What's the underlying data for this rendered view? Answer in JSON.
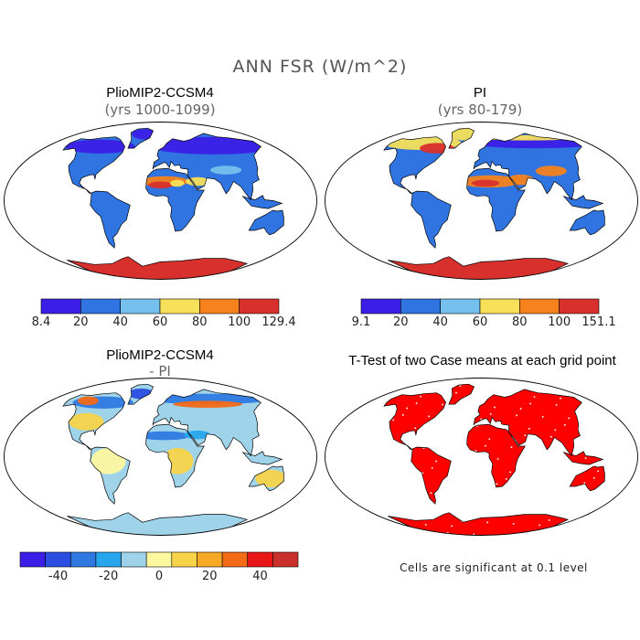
{
  "figure": {
    "title": "ANN FSR (W/m^2)"
  },
  "panels": [
    {
      "id": "pliomip",
      "title": "PlioMIP2-CCSM4",
      "subtitle": "(yrs 1000-1099)",
      "scheme": "abs_plio"
    },
    {
      "id": "pi",
      "title": "PI",
      "subtitle": "(yrs 80-179)",
      "scheme": "abs_pi"
    },
    {
      "id": "diff",
      "title": "PlioMIP2-CCSM4",
      "subtitle": "- PI",
      "scheme": "diff"
    },
    {
      "id": "ttest",
      "title": "T-Test of two Case means at each grid point",
      "subtitle": "",
      "scheme": "ttest"
    }
  ],
  "colorbars": {
    "abs_left": {
      "colors": [
        "#3b1fe6",
        "#2f74e0",
        "#75c0ec",
        "#f7e05a",
        "#f5821c",
        "#d8302c"
      ],
      "labels": [
        "8.4",
        "20",
        "40",
        "60",
        "80",
        "100",
        "129.4"
      ]
    },
    "abs_right": {
      "colors": [
        "#3b1fe6",
        "#2f74e0",
        "#75c0ec",
        "#f7e05a",
        "#f5821c",
        "#d8302c"
      ],
      "labels": [
        "9.1",
        "20",
        "40",
        "60",
        "80",
        "100",
        "151.1"
      ]
    },
    "diff": {
      "colors": [
        "#3b1fe6",
        "#2a4ee2",
        "#2f79e2",
        "#27a6ee",
        "#9fd3ea",
        "#fdf7a0",
        "#f8d34a",
        "#f6a924",
        "#f36a17",
        "#e81616",
        "#c9302c"
      ],
      "labels": [
        "-40",
        "-20",
        "0",
        "20",
        "40"
      ]
    }
  },
  "note": "Cells are significant at 0.1 level",
  "legend_colors": {
    "ocean": "#ffffff",
    "significant": "#ff0000",
    "coastline": "#000000"
  }
}
